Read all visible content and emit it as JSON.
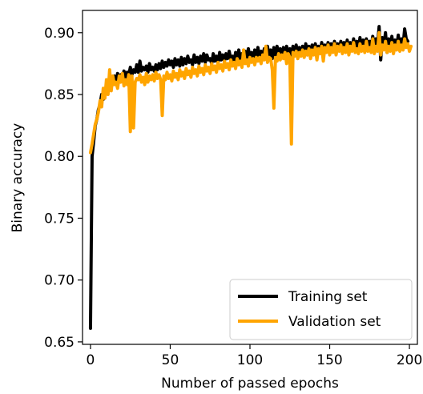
{
  "chart_data": {
    "type": "line",
    "xlabel": "Number of passed epochs",
    "ylabel": "Binary accuracy",
    "xlim": [
      -5,
      205
    ],
    "ylim": [
      0.648,
      0.918
    ],
    "xticks": [
      0,
      50,
      100,
      150,
      200
    ],
    "xtick_labels": [
      "0",
      "50",
      "100",
      "150",
      "200"
    ],
    "yticks": [
      0.65,
      0.7,
      0.75,
      0.8,
      0.85,
      0.9
    ],
    "ytick_labels": [
      "0.65",
      "0.70",
      "0.75",
      "0.80",
      "0.85",
      "0.90"
    ],
    "grid": false,
    "legend_position": "lower-right",
    "series": [
      {
        "name": "Training set",
        "color": "#000000",
        "values": [
          0.661,
          0.8,
          0.812,
          0.825,
          0.83,
          0.838,
          0.842,
          0.85,
          0.846,
          0.852,
          0.856,
          0.86,
          0.855,
          0.862,
          0.858,
          0.865,
          0.86,
          0.867,
          0.862,
          0.866,
          0.863,
          0.869,
          0.864,
          0.868,
          0.866,
          0.872,
          0.866,
          0.87,
          0.868,
          0.874,
          0.868,
          0.877,
          0.869,
          0.872,
          0.87,
          0.873,
          0.868,
          0.875,
          0.87,
          0.872,
          0.869,
          0.874,
          0.87,
          0.875,
          0.871,
          0.877,
          0.872,
          0.876,
          0.873,
          0.878,
          0.874,
          0.877,
          0.872,
          0.879,
          0.874,
          0.878,
          0.873,
          0.88,
          0.874,
          0.879,
          0.875,
          0.881,
          0.876,
          0.878,
          0.874,
          0.882,
          0.876,
          0.88,
          0.875,
          0.881,
          0.877,
          0.883,
          0.876,
          0.882,
          0.878,
          0.879,
          0.875,
          0.883,
          0.877,
          0.881,
          0.876,
          0.884,
          0.878,
          0.882,
          0.877,
          0.883,
          0.879,
          0.885,
          0.878,
          0.881,
          0.876,
          0.884,
          0.879,
          0.886,
          0.878,
          0.883,
          0.877,
          0.885,
          0.88,
          0.887,
          0.879,
          0.884,
          0.878,
          0.886,
          0.881,
          0.888,
          0.879,
          0.885,
          0.88,
          0.887,
          0.881,
          0.889,
          0.88,
          0.886,
          0.879,
          0.888,
          0.882,
          0.889,
          0.88,
          0.887,
          0.881,
          0.888,
          0.882,
          0.889,
          0.881,
          0.887,
          0.882,
          0.889,
          0.883,
          0.89,
          0.881,
          0.888,
          0.882,
          0.889,
          0.883,
          0.891,
          0.882,
          0.889,
          0.883,
          0.89,
          0.884,
          0.891,
          0.882,
          0.889,
          0.884,
          0.892,
          0.883,
          0.89,
          0.885,
          0.892,
          0.883,
          0.891,
          0.885,
          0.893,
          0.884,
          0.891,
          0.886,
          0.893,
          0.884,
          0.892,
          0.886,
          0.894,
          0.885,
          0.892,
          0.887,
          0.895,
          0.885,
          0.893,
          0.887,
          0.896,
          0.886,
          0.894,
          0.887,
          0.895,
          0.886,
          0.893,
          0.888,
          0.897,
          0.887,
          0.895,
          0.889,
          0.905,
          0.878,
          0.896,
          0.89,
          0.9,
          0.884,
          0.895,
          0.889,
          0.897,
          0.886,
          0.894,
          0.888,
          0.898,
          0.887,
          0.895,
          0.889,
          0.903,
          0.895,
          0.893
        ]
      },
      {
        "name": "Validation set",
        "color": "#ffa500",
        "values": [
          0.803,
          0.81,
          0.818,
          0.826,
          0.83,
          0.836,
          0.845,
          0.84,
          0.855,
          0.847,
          0.862,
          0.85,
          0.87,
          0.853,
          0.865,
          0.858,
          0.86,
          0.855,
          0.865,
          0.86,
          0.867,
          0.857,
          0.862,
          0.858,
          0.866,
          0.82,
          0.865,
          0.823,
          0.86,
          0.863,
          0.862,
          0.866,
          0.86,
          0.864,
          0.858,
          0.867,
          0.86,
          0.865,
          0.862,
          0.866,
          0.861,
          0.868,
          0.863,
          0.866,
          0.862,
          0.833,
          0.865,
          0.862,
          0.868,
          0.863,
          0.866,
          0.861,
          0.869,
          0.864,
          0.867,
          0.862,
          0.87,
          0.865,
          0.868,
          0.863,
          0.871,
          0.866,
          0.869,
          0.864,
          0.872,
          0.867,
          0.87,
          0.865,
          0.873,
          0.868,
          0.871,
          0.866,
          0.874,
          0.869,
          0.872,
          0.867,
          0.875,
          0.87,
          0.873,
          0.868,
          0.876,
          0.871,
          0.874,
          0.869,
          0.877,
          0.872,
          0.875,
          0.87,
          0.878,
          0.873,
          0.876,
          0.871,
          0.879,
          0.874,
          0.877,
          0.872,
          0.886,
          0.875,
          0.878,
          0.873,
          0.88,
          0.876,
          0.879,
          0.874,
          0.88,
          0.877,
          0.88,
          0.875,
          0.882,
          0.878,
          0.889,
          0.876,
          0.88,
          0.879,
          0.87,
          0.839,
          0.88,
          0.877,
          0.883,
          0.878,
          0.882,
          0.879,
          0.884,
          0.875,
          0.883,
          0.88,
          0.81,
          0.884,
          0.881,
          0.885,
          0.879,
          0.884,
          0.881,
          0.886,
          0.88,
          0.885,
          0.882,
          0.887,
          0.879,
          0.886,
          0.882,
          0.888,
          0.878,
          0.887,
          0.883,
          0.889,
          0.877,
          0.888,
          0.884,
          0.89,
          0.882,
          0.888,
          0.884,
          0.891,
          0.882,
          0.889,
          0.885,
          0.89,
          0.883,
          0.888,
          0.884,
          0.891,
          0.882,
          0.889,
          0.885,
          0.892,
          0.884,
          0.887,
          0.883,
          0.891,
          0.885,
          0.889,
          0.884,
          0.893,
          0.885,
          0.888,
          0.884,
          0.895,
          0.883,
          0.889,
          0.885,
          0.9,
          0.882,
          0.89,
          0.886,
          0.893,
          0.884,
          0.889,
          0.885,
          0.892,
          0.883,
          0.89,
          0.886,
          0.893,
          0.885,
          0.89,
          0.886,
          0.895,
          0.888,
          0.891,
          0.885,
          0.889
        ]
      }
    ]
  }
}
